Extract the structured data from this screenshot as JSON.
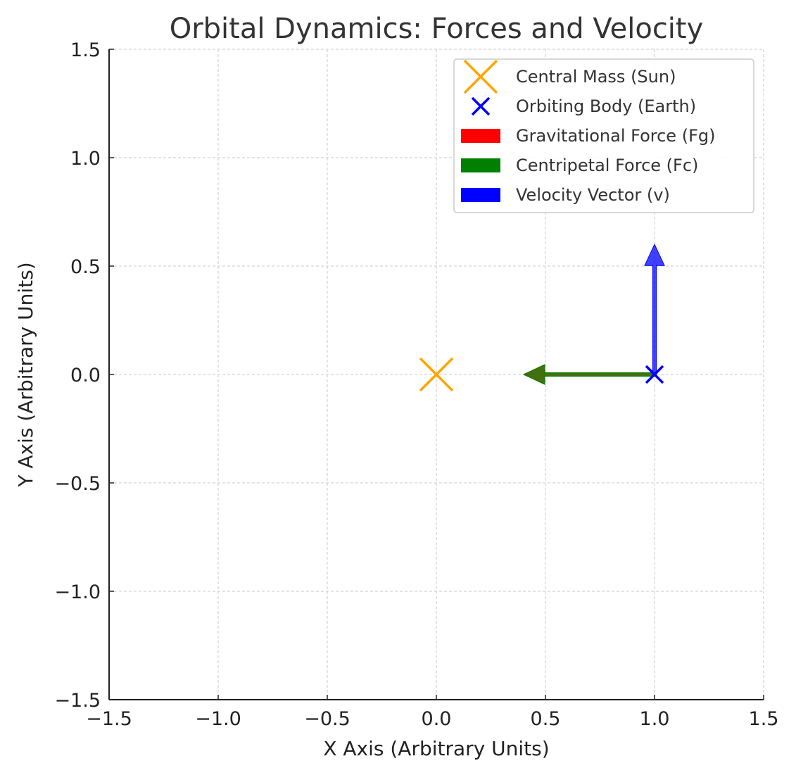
{
  "chart_data": {
    "type": "scatter",
    "title": "Orbital Dynamics: Forces and Velocity",
    "xlabel": "X Axis (Arbitrary Units)",
    "ylabel": "Y Axis (Arbitrary Units)",
    "xlim": [
      -1.5,
      1.5
    ],
    "ylim": [
      -1.5,
      1.5
    ],
    "xticks": [
      -1.5,
      -1.0,
      -0.5,
      0.0,
      0.5,
      1.0,
      1.5
    ],
    "yticks": [
      -1.5,
      -1.0,
      -0.5,
      0.0,
      0.5,
      1.0,
      1.5
    ],
    "xtick_labels": [
      "−1.5",
      "−1.0",
      "−0.5",
      "0.0",
      "0.5",
      "1.0",
      "1.5"
    ],
    "ytick_labels": [
      "−1.5",
      "−1.0",
      "−0.5",
      "0.0",
      "0.5",
      "1.0",
      "1.5"
    ],
    "grid": true,
    "legend_position": "top-right",
    "points": [
      {
        "name": "Central Mass (Sun)",
        "x": 0.0,
        "y": 0.0,
        "marker": "x",
        "size": "large",
        "color": "#FFA500"
      },
      {
        "name": "Orbiting Body (Earth)",
        "x": 1.0,
        "y": 0.0,
        "marker": "x",
        "size": "small",
        "color": "#0000FF"
      }
    ],
    "vectors": [
      {
        "name": "Gravitational Force (Fg)",
        "x": 1.0,
        "y": 0.0,
        "dx": -0.6,
        "dy": 0.0,
        "color": "#FF0000"
      },
      {
        "name": "Centripetal Force (Fc)",
        "x": 1.0,
        "y": 0.0,
        "dx": -0.6,
        "dy": 0.0,
        "color": "#008000"
      },
      {
        "name": "Velocity Vector (v)",
        "x": 1.0,
        "y": 0.0,
        "dx": 0.0,
        "dy": 0.6,
        "color": "#0000FF"
      }
    ],
    "legend": [
      {
        "label": "Central Mass (Sun)",
        "kind": "marker-large",
        "color": "#FFA500"
      },
      {
        "label": "Orbiting Body (Earth)",
        "kind": "marker-small",
        "color": "#0000FF"
      },
      {
        "label": "Gravitational Force (Fg)",
        "kind": "patch",
        "color": "#FF0000"
      },
      {
        "label": "Centripetal Force (Fc)",
        "kind": "patch",
        "color": "#008000"
      },
      {
        "label": "Velocity Vector (v)",
        "kind": "patch",
        "color": "#0000FF"
      }
    ]
  }
}
